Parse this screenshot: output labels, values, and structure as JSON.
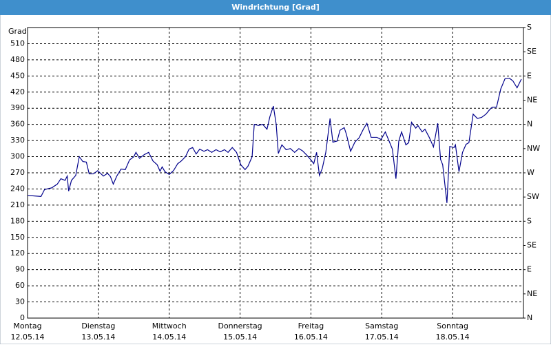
{
  "chart_data": {
    "type": "line",
    "title": "Windrichtung [Grad]",
    "ylabel": "Grad",
    "color": "#00008b",
    "grid": true,
    "xlim": [
      0,
      7
    ],
    "xticks": [
      {
        "value": 0,
        "label": "Montag"
      },
      {
        "value": 1,
        "label": "Dienstag"
      },
      {
        "value": 2,
        "label": "Mittwoch"
      },
      {
        "value": 3,
        "label": "Donnerstag"
      },
      {
        "value": 4,
        "label": "Freitag"
      },
      {
        "value": 5,
        "label": "Samstag"
      },
      {
        "value": 6,
        "label": "Sonntag"
      }
    ],
    "xtick_dates": [
      "12.05.14",
      "13.05.14",
      "14.05.14",
      "15.05.14",
      "16.05.14",
      "17.05.14",
      "18.05.14"
    ],
    "ylim": [
      0,
      540
    ],
    "yticks": [
      0,
      30,
      60,
      90,
      120,
      150,
      180,
      210,
      240,
      270,
      300,
      330,
      360,
      390,
      420,
      450,
      480,
      510
    ],
    "y2lim": [
      0,
      540
    ],
    "y2ticks": [
      {
        "value": 0,
        "label": "N"
      },
      {
        "value": 45,
        "label": "NE"
      },
      {
        "value": 90,
        "label": "E"
      },
      {
        "value": 135,
        "label": "SE"
      },
      {
        "value": 180,
        "label": "S"
      },
      {
        "value": 225,
        "label": "SW"
      },
      {
        "value": 270,
        "label": "W"
      },
      {
        "value": 315,
        "label": "NW"
      },
      {
        "value": 360,
        "label": "N"
      },
      {
        "value": 405,
        "label": "NE"
      },
      {
        "value": 450,
        "label": "E"
      },
      {
        "value": 495,
        "label": "SE"
      },
      {
        "value": 540,
        "label": "S"
      }
    ],
    "x": [
      0,
      0.1,
      0.19,
      0.24,
      0.34,
      0.42,
      0.47,
      0.53,
      0.56,
      0.58,
      0.62,
      0.68,
      0.73,
      0.78,
      0.83,
      0.87,
      0.93,
      0.99,
      1.07,
      1.13,
      1.17,
      1.21,
      1.26,
      1.32,
      1.38,
      1.44,
      1.5,
      1.53,
      1.58,
      1.65,
      1.71,
      1.77,
      1.83,
      1.87,
      1.9,
      1.94,
      2.0,
      2.06,
      2.12,
      2.17,
      2.23,
      2.28,
      2.33,
      2.38,
      2.43,
      2.49,
      2.54,
      2.6,
      2.66,
      2.72,
      2.78,
      2.83,
      2.89,
      2.95,
      3.01,
      3.07,
      3.11,
      3.17,
      3.2,
      3.26,
      3.32,
      3.38,
      3.42,
      3.47,
      3.51,
      3.54,
      3.59,
      3.65,
      3.71,
      3.77,
      3.83,
      3.88,
      3.94,
      4.0,
      4.04,
      4.08,
      4.12,
      4.16,
      4.21,
      4.27,
      4.31,
      4.37,
      4.41,
      4.47,
      4.5,
      4.56,
      4.62,
      4.68,
      4.74,
      4.79,
      4.85,
      4.93,
      4.99,
      5.05,
      5.11,
      5.15,
      5.2,
      5.24,
      5.28,
      5.34,
      5.38,
      5.42,
      5.48,
      5.51,
      5.57,
      5.61,
      5.67,
      5.73,
      5.79,
      5.83,
      5.86,
      5.92,
      5.96,
      6.02,
      6.04,
      6.09,
      6.14,
      6.19,
      6.23,
      6.29,
      6.35,
      6.41,
      6.47,
      6.52,
      6.56,
      6.62,
      6.68,
      6.74,
      6.8,
      6.85,
      6.91,
      6.97
    ],
    "values": [
      228,
      227,
      226,
      239,
      242,
      249,
      259,
      256,
      264,
      236,
      256,
      265,
      300,
      291,
      290,
      268,
      268,
      274,
      264,
      269,
      263,
      249,
      264,
      277,
      276,
      294,
      300,
      308,
      297,
      304,
      308,
      292,
      285,
      273,
      281,
      272,
      267,
      274,
      287,
      292,
      300,
      314,
      317,
      305,
      314,
      310,
      313,
      308,
      313,
      309,
      313,
      308,
      317,
      308,
      285,
      276,
      282,
      300,
      360,
      358,
      360,
      351,
      374,
      394,
      360,
      306,
      322,
      313,
      315,
      308,
      315,
      311,
      303,
      294,
      287,
      308,
      265,
      278,
      308,
      371,
      327,
      329,
      349,
      354,
      342,
      310,
      327,
      335,
      351,
      362,
      336,
      336,
      332,
      346,
      327,
      314,
      259,
      329,
      346,
      322,
      326,
      364,
      353,
      358,
      346,
      351,
      336,
      318,
      362,
      295,
      285,
      214,
      319,
      317,
      322,
      272,
      308,
      323,
      326,
      379,
      371,
      373,
      379,
      387,
      392,
      392,
      426,
      445,
      446,
      441,
      428,
      444
    ]
  }
}
